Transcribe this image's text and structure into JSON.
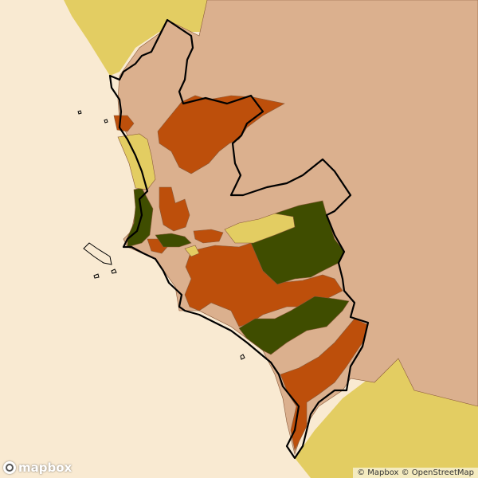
{
  "map": {
    "colors": {
      "sea": "#f9ead2",
      "outside_region": "#e3cd62",
      "region_background": "#dbb08e",
      "high": "#bd4f0b",
      "low": "#3f4d00",
      "mid": "#e3cd62",
      "boundary": "#000000",
      "district_edge": "#8a5a3a"
    },
    "legend_present": false,
    "basemap_logo": "mapbox",
    "attribution": "© Mapbox © OpenStreetMap"
  }
}
